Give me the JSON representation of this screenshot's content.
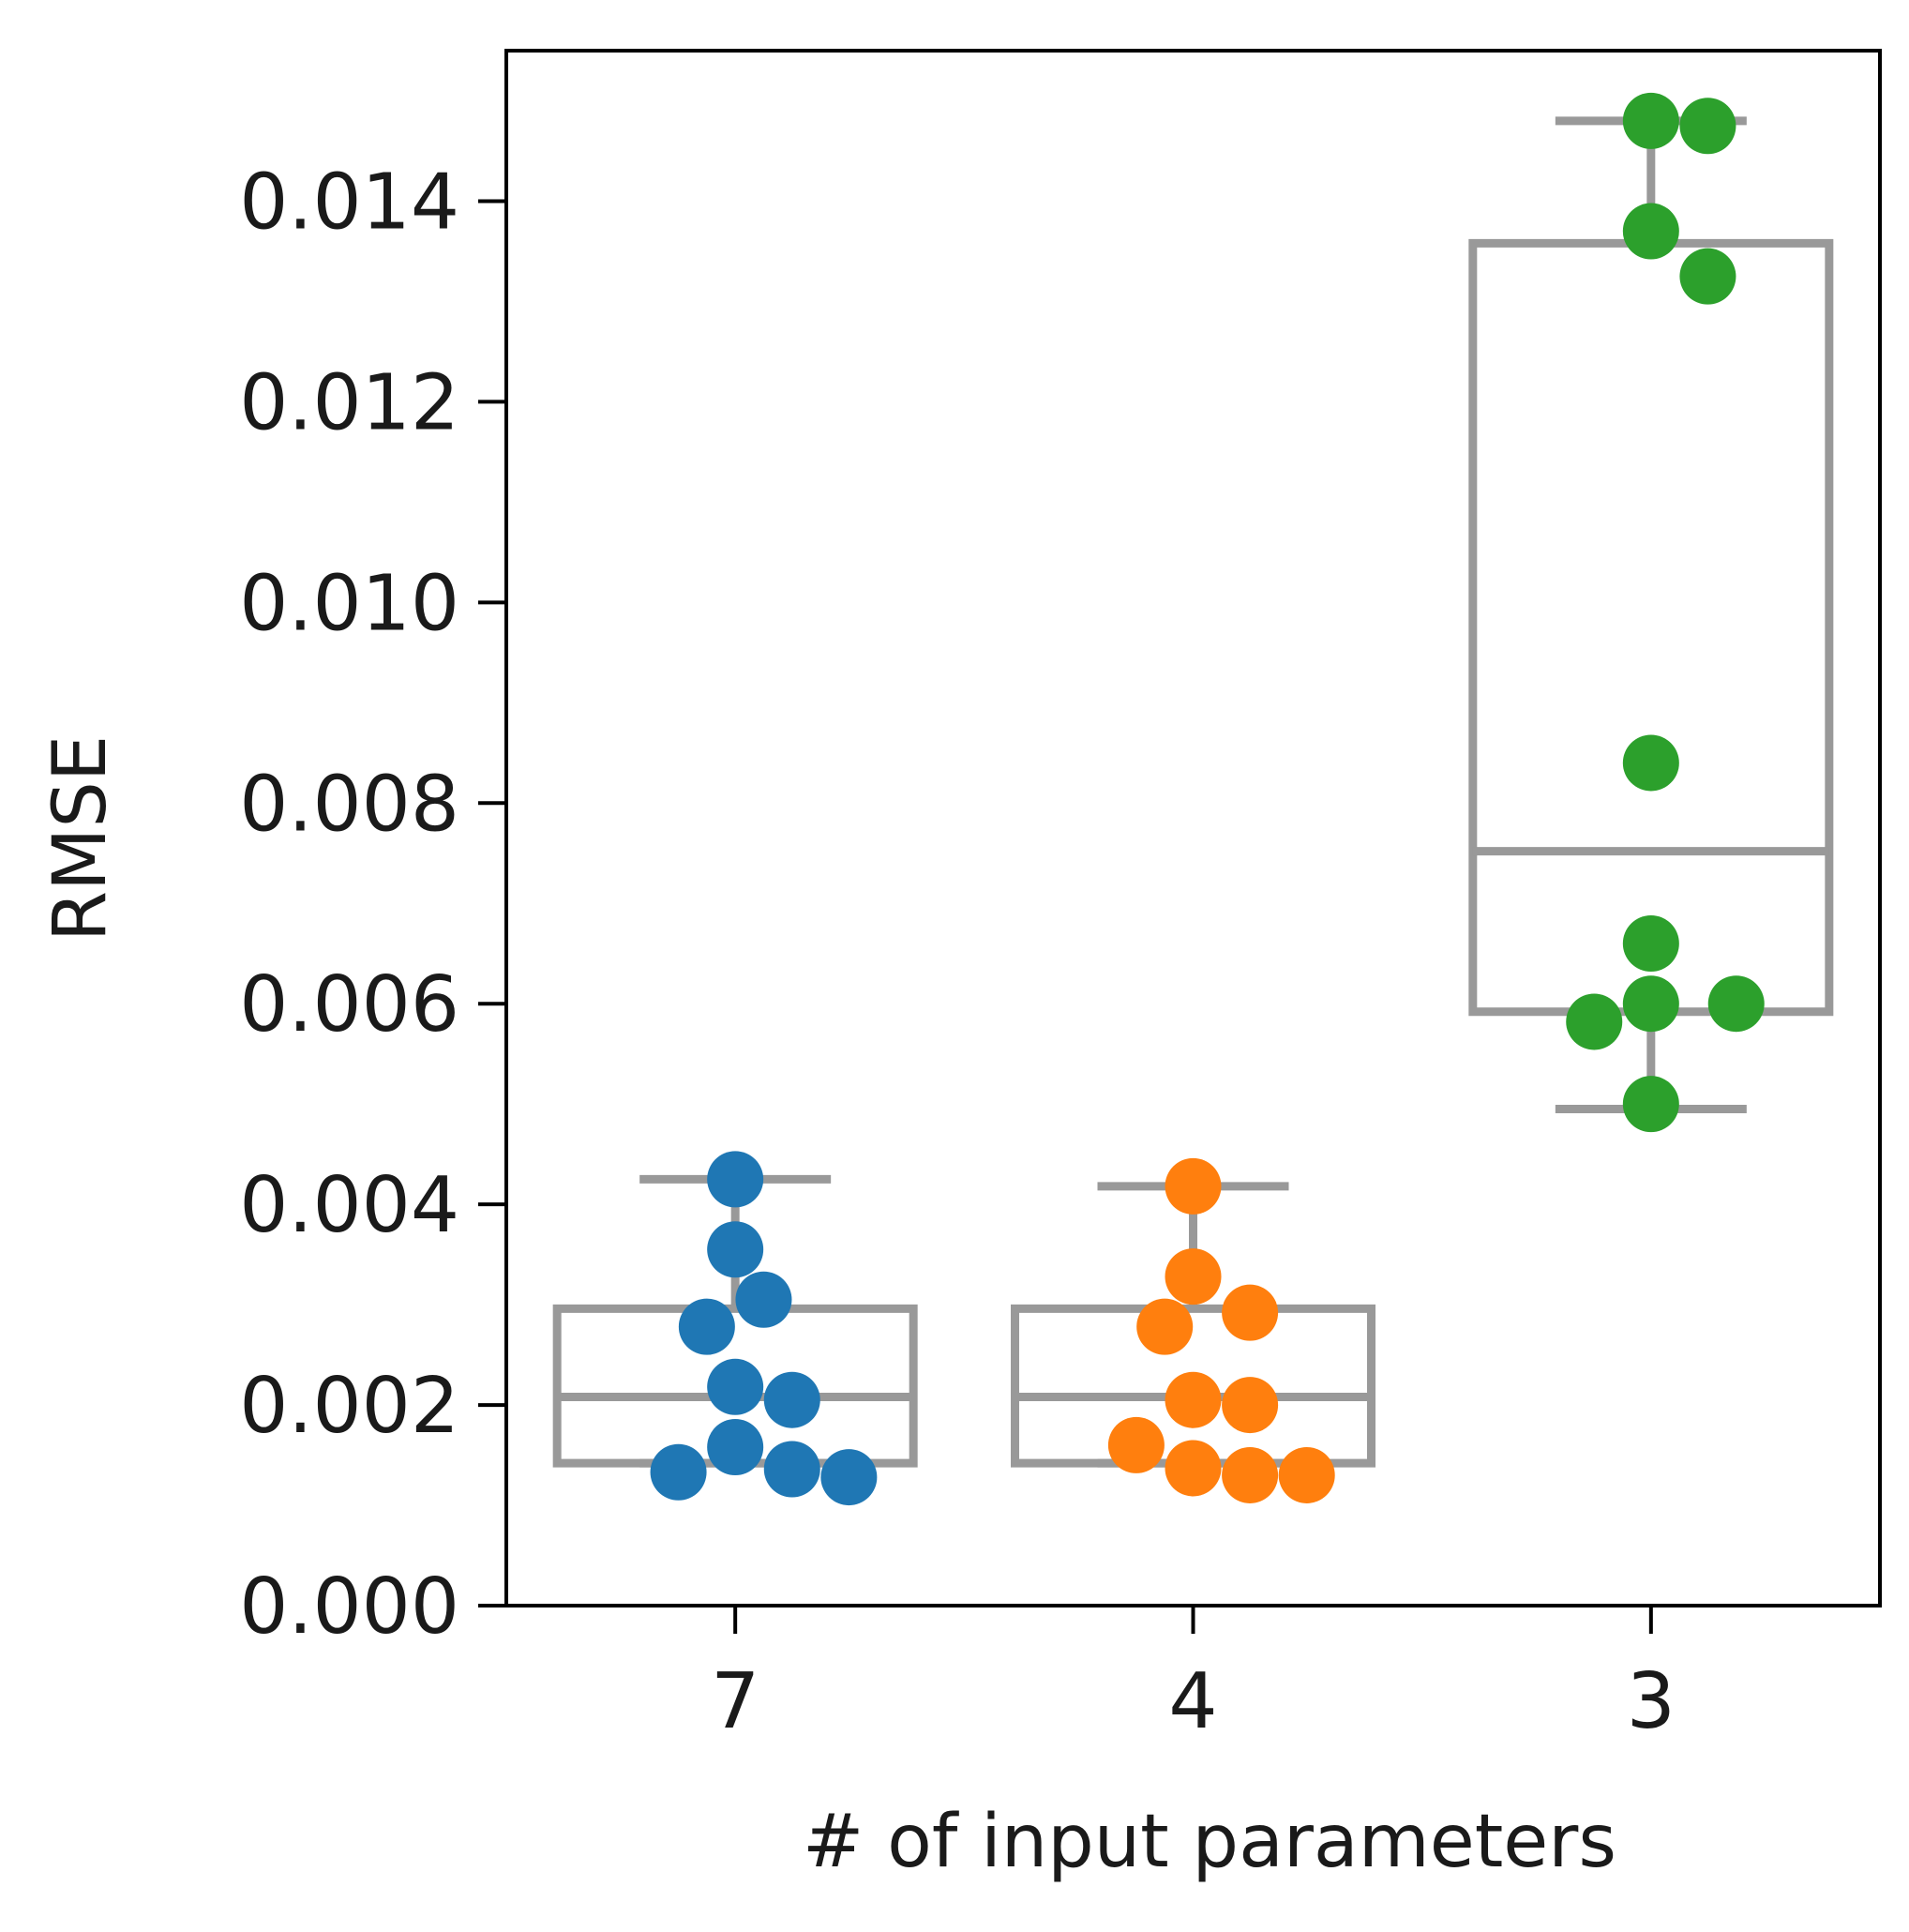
{
  "chart_data": {
    "type": "box",
    "title": "",
    "xlabel": "# of input parameters",
    "ylabel": "RMSE",
    "ylim": [
      0,
      0.0155
    ],
    "yticks": [
      "0.000",
      "0.002",
      "0.004",
      "0.006",
      "0.008",
      "0.010",
      "0.012",
      "0.014"
    ],
    "categories": [
      "7",
      "4",
      "3"
    ],
    "grid": false,
    "box_color": "#999999",
    "series": [
      {
        "category": "7",
        "color": "#1f77b4",
        "box": {
          "whisker_low": 0.00142,
          "q1": 0.00142,
          "median": 0.00208,
          "q3": 0.00296,
          "whisker_high": 0.00425
        },
        "points": [
          0.00425,
          0.00355,
          0.00305,
          0.00278,
          0.00218,
          0.00205,
          0.00158,
          0.00133,
          0.00128,
          0.00136
        ]
      },
      {
        "category": "4",
        "color": "#ff7f0e",
        "box": {
          "whisker_low": 0.00142,
          "q1": 0.00142,
          "median": 0.00208,
          "q3": 0.00296,
          "whisker_high": 0.00418
        },
        "points": [
          0.00418,
          0.00328,
          0.00292,
          0.00278,
          0.00205,
          0.002,
          0.0016,
          0.0013,
          0.0013,
          0.00137
        ]
      },
      {
        "category": "3",
        "color": "#2ca02c",
        "box": {
          "whisker_low": 0.00495,
          "q1": 0.00592,
          "median": 0.00752,
          "q3": 0.01358,
          "whisker_high": 0.0148
        },
        "points": [
          0.0148,
          0.01475,
          0.0137,
          0.01325,
          0.0084,
          0.0066,
          0.006,
          0.00582,
          0.006,
          0.005
        ]
      }
    ]
  }
}
